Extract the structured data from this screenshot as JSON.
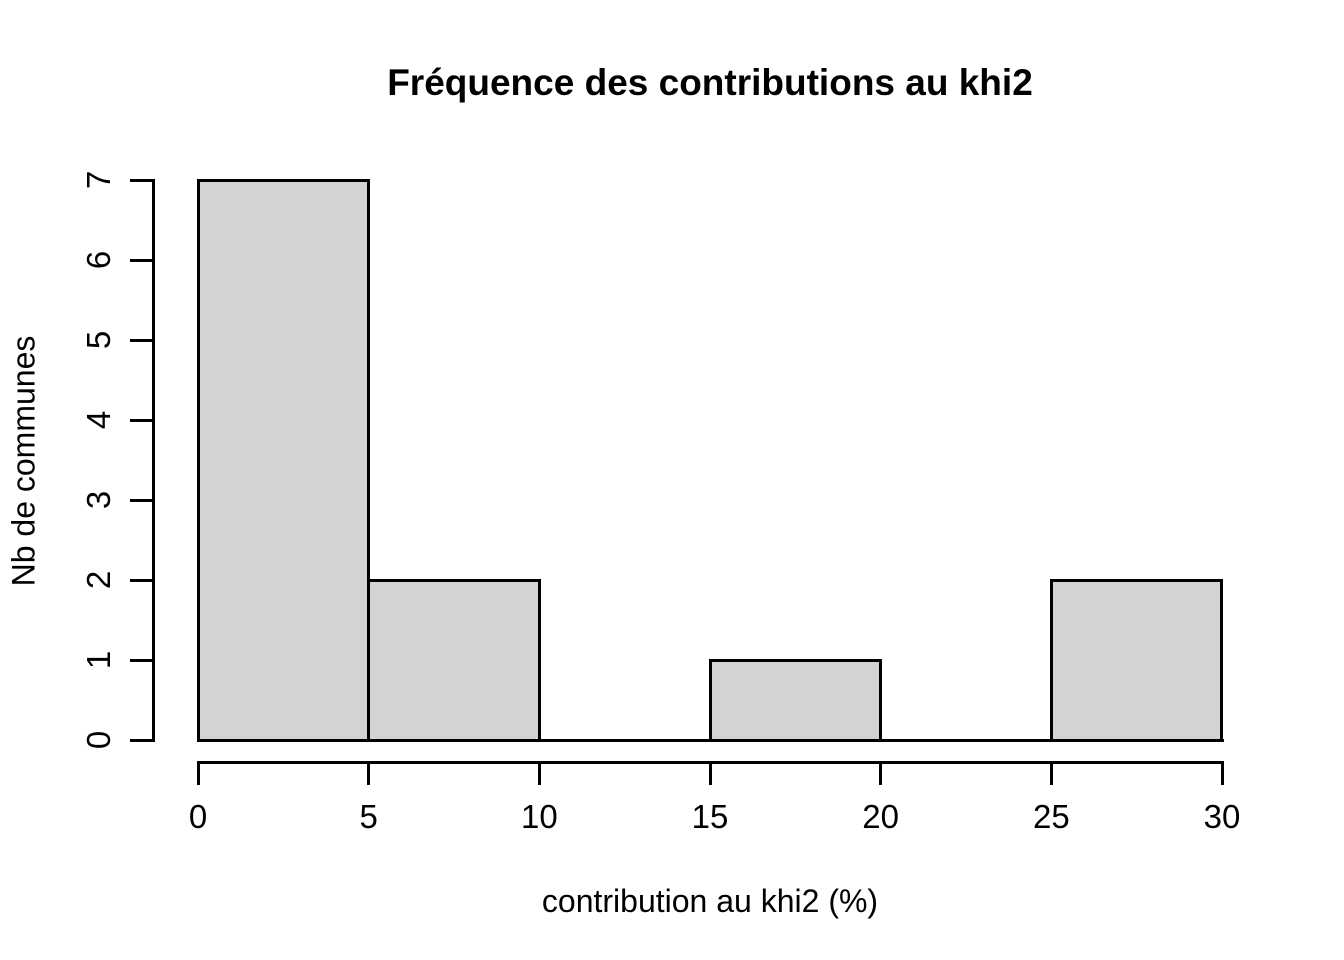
{
  "chart_data": {
    "type": "bar",
    "subtype": "histogram",
    "title": "Fréquence des contributions au khi2",
    "xlabel": "contribution au khi2 (%)",
    "ylabel": "Nb de communes",
    "xlim": [
      0,
      30
    ],
    "ylim": [
      0,
      7
    ],
    "x_ticks": [
      0,
      5,
      10,
      15,
      20,
      25,
      30
    ],
    "y_ticks": [
      0,
      1,
      2,
      3,
      4,
      5,
      6,
      7
    ],
    "bin_width": 5,
    "categories": [
      "0-5",
      "5-10",
      "10-15",
      "15-20",
      "20-25",
      "25-30"
    ],
    "values": [
      7,
      2,
      0,
      1,
      0,
      2
    ],
    "grid": false,
    "colors": {
      "bar_fill": "#d3d3d3",
      "bar_border": "#000000",
      "axis": "#000000",
      "text": "#000000",
      "background": "#ffffff"
    }
  }
}
